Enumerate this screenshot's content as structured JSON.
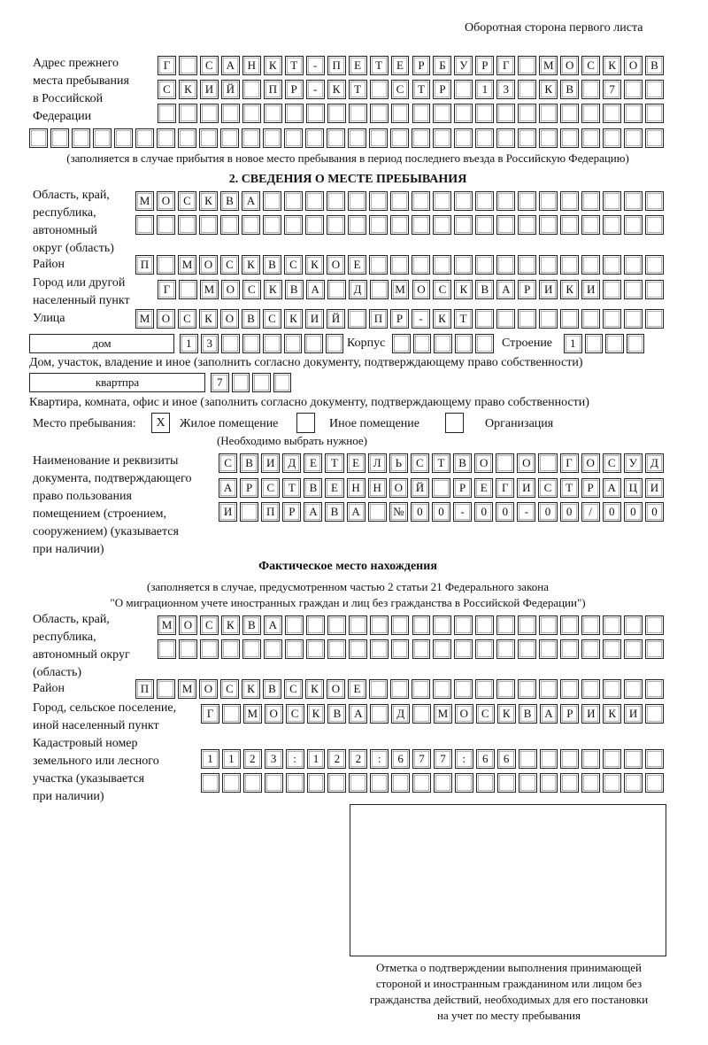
{
  "header": "Оборотная сторона первого листа",
  "prev_address": {
    "label": [
      "Адрес прежнего",
      "места пребывания",
      "в Российской",
      "Федерации"
    ],
    "rows": [
      [
        "Г",
        "",
        "С",
        "А",
        "Н",
        "К",
        "Т",
        "-",
        "П",
        "Е",
        "Т",
        "Е",
        "Р",
        "Б",
        "У",
        "Р",
        "Г",
        "",
        "М",
        "О",
        "С",
        "К",
        "О",
        "В"
      ],
      [
        "С",
        "К",
        "И",
        "Й",
        "",
        "П",
        "Р",
        "-",
        "К",
        "Т",
        "",
        "С",
        "Т",
        "Р",
        "",
        "1",
        "3",
        "",
        "К",
        "В",
        "",
        "7",
        "",
        ""
      ],
      [
        "",
        "",
        "",
        "",
        "",
        "",
        "",
        "",
        "",
        "",
        "",
        "",
        "",
        "",
        "",
        "",
        "",
        "",
        "",
        "",
        "",
        "",
        "",
        ""
      ],
      [
        "",
        "",
        "",
        "",
        "",
        "",
        "",
        "",
        "",
        "",
        "",
        "",
        "",
        "",
        "",
        "",
        "",
        "",
        "",
        "",
        "",
        "",
        "",
        "",
        "",
        "",
        "",
        "",
        "",
        ""
      ]
    ],
    "note": "(заполняется в случае прибытия в новое место пребывания в период последнего въезда в Российскую Федерацию)"
  },
  "section2": {
    "title": "2. СВЕДЕНИЯ О МЕСТЕ ПРЕБЫВАНИЯ",
    "region_label": [
      "Область, край,",
      "республика,",
      "автономный",
      "округ (область)"
    ],
    "region_rows": [
      [
        "М",
        "О",
        "С",
        "К",
        "В",
        "А",
        "",
        "",
        "",
        "",
        "",
        "",
        "",
        "",
        "",
        "",
        "",
        "",
        "",
        "",
        "",
        "",
        "",
        "",
        ""
      ],
      [
        "",
        "",
        "",
        "",
        "",
        "",
        "",
        "",
        "",
        "",
        "",
        "",
        "",
        "",
        "",
        "",
        "",
        "",
        "",
        "",
        "",
        "",
        "",
        "",
        ""
      ]
    ],
    "district_label": "Район",
    "district_row": [
      "П",
      "",
      "М",
      "О",
      "С",
      "К",
      "В",
      "С",
      "К",
      "О",
      "Е",
      "",
      "",
      "",
      "",
      "",
      "",
      "",
      "",
      "",
      "",
      "",
      "",
      "",
      ""
    ],
    "city_label": [
      "Город или другой",
      "населенный пункт"
    ],
    "city_row": [
      "Г",
      "",
      "М",
      "О",
      "С",
      "К",
      "В",
      "А",
      "",
      "Д",
      "",
      "М",
      "О",
      "С",
      "К",
      "В",
      "А",
      "Р",
      "И",
      "К",
      "И",
      "",
      "",
      ""
    ],
    "street_label": "Улица",
    "street_row": [
      "М",
      "О",
      "С",
      "К",
      "О",
      "В",
      "С",
      "К",
      "И",
      "Й",
      "",
      "П",
      "Р",
      "-",
      "К",
      "Т",
      "",
      "",
      "",
      "",
      "",
      "",
      "",
      "",
      ""
    ],
    "house_type": "дом",
    "house_cells": [
      "1",
      "3",
      "",
      "",
      "",
      "",
      "",
      ""
    ],
    "korpus_label": "Корпус",
    "korpus_cells": [
      "",
      "",
      "",
      "",
      ""
    ],
    "building_label": "Строение",
    "building_cells": [
      "1",
      "",
      "",
      ""
    ],
    "house_caption": "Дом, участок, владение и иное (заполнить согласно документу, подтверждающему право собственности)",
    "flat_type": "квартпра",
    "flat_cells": [
      "7",
      "",
      "",
      ""
    ],
    "flat_caption": "Квартира, комната, офис и иное (заполнить согласно документу, подтверждающему право собственности)",
    "stay_label": "Место пребывания:",
    "options": [
      {
        "label": "Жилое помещение",
        "checked": "X"
      },
      {
        "label": "Иное помещение",
        "checked": ""
      },
      {
        "label": "Организация",
        "checked": ""
      }
    ],
    "options_note": "(Необходимо выбрать нужное)",
    "doc_label": [
      "Наименование и реквизиты",
      "документа, подтверждающего",
      "право пользования",
      "помещением (строением,",
      "сооружением) (указывается",
      "при наличии)"
    ],
    "doc_rows": [
      [
        "С",
        "В",
        "И",
        "Д",
        "Е",
        "Т",
        "Е",
        "Л",
        "Ь",
        "С",
        "Т",
        "В",
        "О",
        "",
        "О",
        "",
        "Г",
        "О",
        "С",
        "У",
        "Д"
      ],
      [
        "А",
        "Р",
        "С",
        "Т",
        "В",
        "Е",
        "Н",
        "Н",
        "О",
        "Й",
        "",
        "Р",
        "Е",
        "Г",
        "И",
        "С",
        "Т",
        "Р",
        "А",
        "Ц",
        "И"
      ],
      [
        "И",
        "",
        "П",
        "Р",
        "А",
        "В",
        "А",
        "",
        "№",
        "0",
        "0",
        "-",
        "0",
        "0",
        "-",
        "0",
        "0",
        "/",
        "0",
        "0",
        "0"
      ]
    ]
  },
  "actual": {
    "title": "Фактическое место нахождения",
    "note": [
      "(заполняется в случае, предусмотренном частью 2 статьи 21 Федерального закона",
      "\"О миграционном учете иностранных граждан и лиц без гражданства в Российской Федерации\")"
    ],
    "region_label": [
      "Область, край,",
      "республика,",
      "автономный округ",
      "(область)"
    ],
    "region_rows": [
      [
        "М",
        "О",
        "С",
        "К",
        "В",
        "А",
        "",
        "",
        "",
        "",
        "",
        "",
        "",
        "",
        "",
        "",
        "",
        "",
        "",
        "",
        "",
        "",
        "",
        ""
      ],
      [
        "",
        "",
        "",
        "",
        "",
        "",
        "",
        "",
        "",
        "",
        "",
        "",
        "",
        "",
        "",
        "",
        "",
        "",
        "",
        "",
        "",
        "",
        "",
        ""
      ]
    ],
    "district_label": "Район",
    "district_row": [
      "П",
      "",
      "М",
      "О",
      "С",
      "К",
      "В",
      "С",
      "К",
      "О",
      "Е",
      "",
      "",
      "",
      "",
      "",
      "",
      "",
      "",
      "",
      "",
      "",
      "",
      "",
      ""
    ],
    "city_label": [
      "Город, сельское поселение,",
      "иной населенный пункт"
    ],
    "city_row": [
      "Г",
      "",
      "М",
      "О",
      "С",
      "К",
      "В",
      "А",
      "",
      "Д",
      "",
      "М",
      "О",
      "С",
      "К",
      "В",
      "А",
      "Р",
      "И",
      "К",
      "И",
      ""
    ],
    "cadastre_label": [
      "Кадастровый номер",
      "земельного или лесного",
      "участка (указывается",
      "при наличии)"
    ],
    "cadastre_rows": [
      [
        "1",
        "1",
        "2",
        "3",
        ":",
        "1",
        "2",
        "2",
        ":",
        "6",
        "7",
        "7",
        ":",
        "6",
        "6",
        "",
        "",
        "",
        "",
        "",
        "",
        ""
      ],
      [
        "",
        "",
        "",
        "",
        "",
        "",
        "",
        "",
        "",
        "",
        "",
        "",
        "",
        "",
        "",
        "",
        "",
        "",
        "",
        "",
        "",
        ""
      ]
    ]
  },
  "stamp_caption": [
    "Отметка о подтверждении выполнения принимающей",
    "стороной и иностранным гражданином или лицом без",
    "гражданства действий, необходимых для его постановки",
    "на учет по месту пребывания"
  ]
}
